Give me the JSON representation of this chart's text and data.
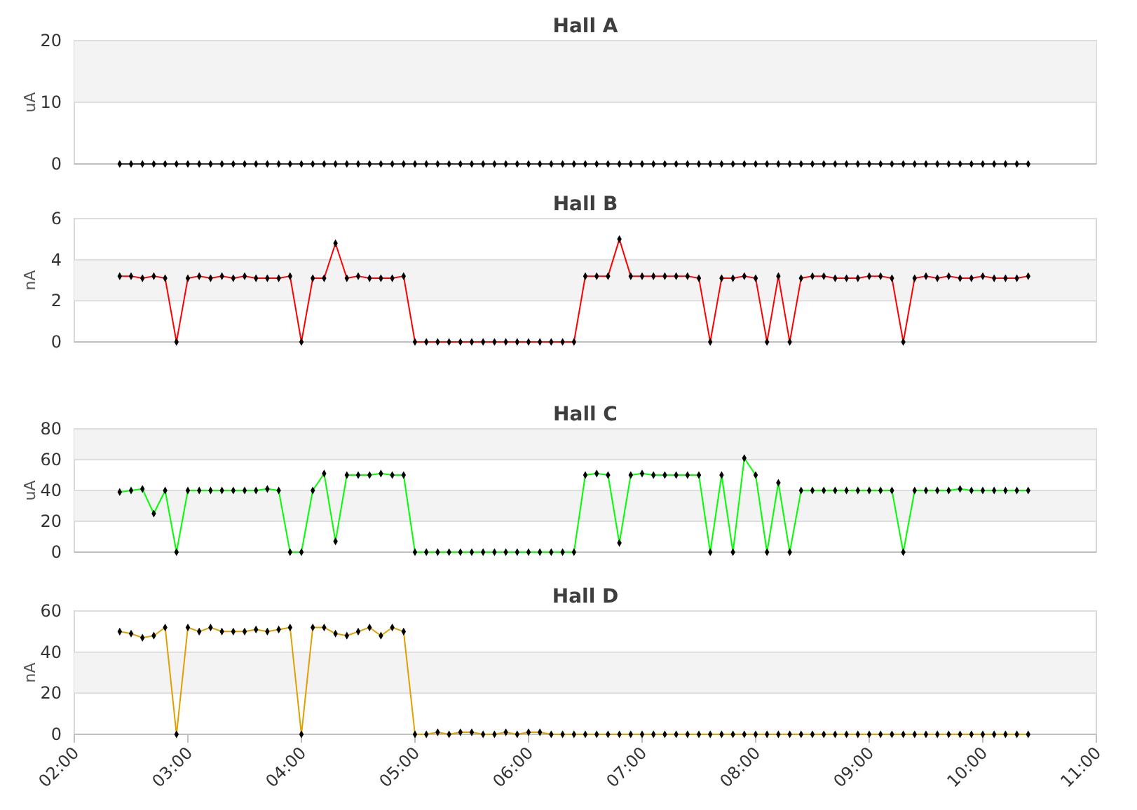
{
  "chart_data": [
    {
      "type": "line",
      "title": "Hall A",
      "ylabel": "uA",
      "color": "#333333",
      "marker": "diamond",
      "grid": "y",
      "tick_labels": "y",
      "xlim": [
        2,
        11
      ],
      "ylim": [
        0,
        20
      ],
      "yticks": [
        0,
        10,
        20
      ],
      "bands": [
        {
          "axis": "y",
          "from": 10,
          "to": 20,
          "color": "#f3f3f3"
        }
      ],
      "x": [
        2.4,
        2.5,
        2.6,
        2.7,
        2.8,
        2.9,
        3.0,
        3.1,
        3.2,
        3.3,
        3.4,
        3.5,
        3.6,
        3.7,
        3.8,
        3.9,
        4.0,
        4.1,
        4.2,
        4.3,
        4.4,
        4.5,
        4.6,
        4.7,
        4.8,
        4.9,
        5.0,
        5.1,
        5.2,
        5.3,
        5.4,
        5.5,
        5.6,
        5.7,
        5.8,
        5.9,
        6.0,
        6.1,
        6.2,
        6.3,
        6.4,
        6.5,
        6.6,
        6.7,
        6.8,
        6.9,
        7.0,
        7.1,
        7.2,
        7.3,
        7.4,
        7.5,
        7.6,
        7.7,
        7.8,
        7.9,
        8.0,
        8.1,
        8.2,
        8.3,
        8.4,
        8.5,
        8.6,
        8.7,
        8.8,
        8.9,
        9.0,
        9.1,
        9.2,
        9.3,
        9.4,
        9.5,
        9.6,
        9.7,
        9.8,
        9.9,
        10.0,
        10.1,
        10.2,
        10.3,
        10.4
      ],
      "values": [
        0,
        0,
        0,
        0,
        0,
        0,
        0,
        0,
        0,
        0,
        0,
        0,
        0,
        0,
        0,
        0,
        0,
        0,
        0,
        0,
        0,
        0,
        0,
        0,
        0,
        0,
        0,
        0,
        0,
        0,
        0,
        0,
        0,
        0,
        0,
        0,
        0,
        0,
        0,
        0,
        0,
        0,
        0,
        0,
        0,
        0,
        0,
        0,
        0,
        0,
        0,
        0,
        0,
        0,
        0,
        0,
        0,
        0,
        0,
        0,
        0,
        0,
        0,
        0,
        0,
        0,
        0,
        0,
        0,
        0,
        0,
        0,
        0,
        0,
        0,
        0,
        0,
        0,
        0,
        0,
        0
      ]
    },
    {
      "type": "line",
      "title": "Hall B",
      "ylabel": "nA",
      "color": "#ff0000",
      "marker": "diamond",
      "grid": "y",
      "tick_labels": "y",
      "xlim": [
        2,
        11
      ],
      "ylim": [
        0,
        6
      ],
      "yticks": [
        0,
        2,
        4,
        6
      ],
      "bands": [
        {
          "axis": "y",
          "from": 2,
          "to": 4,
          "color": "#f3f3f3"
        }
      ],
      "x": [
        2.4,
        2.5,
        2.6,
        2.7,
        2.8,
        2.9,
        3.0,
        3.1,
        3.2,
        3.3,
        3.4,
        3.5,
        3.6,
        3.7,
        3.8,
        3.9,
        4.0,
        4.1,
        4.2,
        4.3,
        4.4,
        4.5,
        4.6,
        4.7,
        4.8,
        4.9,
        5.0,
        5.1,
        5.2,
        5.3,
        5.4,
        5.5,
        5.6,
        5.7,
        5.8,
        5.9,
        6.0,
        6.1,
        6.2,
        6.3,
        6.4,
        6.5,
        6.6,
        6.7,
        6.8,
        6.9,
        7.0,
        7.1,
        7.2,
        7.3,
        7.4,
        7.5,
        7.6,
        7.7,
        7.8,
        7.9,
        8.0,
        8.1,
        8.2,
        8.3,
        8.4,
        8.5,
        8.6,
        8.7,
        8.8,
        8.9,
        9.0,
        9.1,
        9.2,
        9.3,
        9.4,
        9.5,
        9.6,
        9.7,
        9.8,
        9.9,
        10.0,
        10.1,
        10.2,
        10.3,
        10.4
      ],
      "values": [
        3.2,
        3.2,
        3.1,
        3.2,
        3.1,
        0,
        3.1,
        3.2,
        3.1,
        3.2,
        3.1,
        3.2,
        3.1,
        3.1,
        3.1,
        3.2,
        0,
        3.1,
        3.1,
        4.8,
        3.1,
        3.2,
        3.1,
        3.1,
        3.1,
        3.2,
        0,
        0,
        0,
        0,
        0,
        0,
        0,
        0,
        0,
        0,
        0,
        0,
        0,
        0,
        0,
        3.2,
        3.2,
        3.2,
        5.0,
        3.2,
        3.2,
        3.2,
        3.2,
        3.2,
        3.2,
        3.1,
        0,
        3.1,
        3.1,
        3.2,
        3.1,
        0,
        3.2,
        0,
        3.1,
        3.2,
        3.2,
        3.1,
        3.1,
        3.1,
        3.2,
        3.2,
        3.1,
        0,
        3.1,
        3.2,
        3.1,
        3.2,
        3.1,
        3.1,
        3.2,
        3.1,
        3.1,
        3.1,
        3.2
      ]
    },
    {
      "type": "line",
      "title": "Hall C",
      "ylabel": "uA",
      "color": "#00ff00",
      "marker": "diamond",
      "grid": "y",
      "tick_labels": "y",
      "xlim": [
        2,
        11
      ],
      "ylim": [
        0,
        80
      ],
      "yticks": [
        0,
        20,
        40,
        60,
        80
      ],
      "bands": [
        {
          "axis": "y",
          "from": 20,
          "to": 40,
          "color": "#f3f3f3"
        },
        {
          "axis": "y",
          "from": 60,
          "to": 80,
          "color": "#f3f3f3"
        }
      ],
      "x": [
        2.4,
        2.5,
        2.6,
        2.7,
        2.8,
        2.9,
        3.0,
        3.1,
        3.2,
        3.3,
        3.4,
        3.5,
        3.6,
        3.7,
        3.8,
        3.9,
        4.0,
        4.1,
        4.2,
        4.3,
        4.4,
        4.5,
        4.6,
        4.7,
        4.8,
        4.9,
        5.0,
        5.1,
        5.2,
        5.3,
        5.4,
        5.5,
        5.6,
        5.7,
        5.8,
        5.9,
        6.0,
        6.1,
        6.2,
        6.3,
        6.4,
        6.5,
        6.6,
        6.7,
        6.8,
        6.9,
        7.0,
        7.1,
        7.2,
        7.3,
        7.4,
        7.5,
        7.6,
        7.7,
        7.8,
        7.9,
        8.0,
        8.1,
        8.2,
        8.3,
        8.4,
        8.5,
        8.6,
        8.7,
        8.8,
        8.9,
        9.0,
        9.1,
        9.2,
        9.3,
        9.4,
        9.5,
        9.6,
        9.7,
        9.8,
        9.9,
        10.0,
        10.1,
        10.2,
        10.3,
        10.4
      ],
      "values": [
        39,
        40,
        41,
        25,
        40,
        0,
        40,
        40,
        40,
        40,
        40,
        40,
        40,
        41,
        40,
        0,
        0,
        40,
        51,
        7,
        50,
        50,
        50,
        51,
        50,
        50,
        0,
        0,
        0,
        0,
        0,
        0,
        0,
        0,
        0,
        0,
        0,
        0,
        0,
        0,
        0,
        50,
        51,
        50,
        6,
        50,
        51,
        50,
        50,
        50,
        50,
        50,
        0,
        50,
        0,
        61,
        50,
        0,
        45,
        0,
        40,
        40,
        40,
        40,
        40,
        40,
        40,
        40,
        40,
        0,
        40,
        40,
        40,
        40,
        41,
        40,
        40,
        40,
        40,
        40,
        40
      ]
    },
    {
      "type": "line",
      "title": "Hall D",
      "ylabel": "nA",
      "color": "#e0a000",
      "marker": "diamond",
      "grid": "y",
      "xlim": [
        2,
        11
      ],
      "xticks": [
        {
          "value": 2,
          "label": "02:00"
        },
        {
          "value": 3,
          "label": "03:00"
        },
        {
          "value": 4,
          "label": "04:00"
        },
        {
          "value": 5,
          "label": "05:00"
        },
        {
          "value": 6,
          "label": "06:00"
        },
        {
          "value": 7,
          "label": "07:00"
        },
        {
          "value": 8,
          "label": "08:00"
        },
        {
          "value": 9,
          "label": "09:00"
        },
        {
          "value": 10,
          "label": "10:00"
        },
        {
          "value": 11,
          "label": "11:00"
        }
      ],
      "ylim": [
        0,
        60
      ],
      "yticks": [
        0,
        20,
        40,
        60
      ],
      "bands": [
        {
          "axis": "y",
          "from": 20,
          "to": 40,
          "color": "#f3f3f3"
        }
      ],
      "x": [
        2.4,
        2.5,
        2.6,
        2.7,
        2.8,
        2.9,
        3.0,
        3.1,
        3.2,
        3.3,
        3.4,
        3.5,
        3.6,
        3.7,
        3.8,
        3.9,
        4.0,
        4.1,
        4.2,
        4.3,
        4.4,
        4.5,
        4.6,
        4.7,
        4.8,
        4.9,
        5.0,
        5.1,
        5.2,
        5.3,
        5.4,
        5.5,
        5.6,
        5.7,
        5.8,
        5.9,
        6.0,
        6.1,
        6.2,
        6.3,
        6.4,
        6.5,
        6.6,
        6.7,
        6.8,
        6.9,
        7.0,
        7.1,
        7.2,
        7.3,
        7.4,
        7.5,
        7.6,
        7.7,
        7.8,
        7.9,
        8.0,
        8.1,
        8.2,
        8.3,
        8.4,
        8.5,
        8.6,
        8.7,
        8.8,
        8.9,
        9.0,
        9.1,
        9.2,
        9.3,
        9.4,
        9.5,
        9.6,
        9.7,
        9.8,
        9.9,
        10.0,
        10.1,
        10.2,
        10.3,
        10.4
      ],
      "values": [
        50,
        49,
        47,
        48,
        52,
        0,
        52,
        50,
        52,
        50,
        50,
        50,
        51,
        50,
        51,
        52,
        0,
        52,
        52,
        49,
        48,
        50,
        52,
        48,
        52,
        50,
        0,
        0,
        1,
        0,
        1,
        1,
        0,
        0,
        1,
        0,
        1,
        1,
        0,
        0,
        0,
        0,
        0,
        0,
        0,
        0,
        0,
        0,
        0,
        0,
        0,
        0,
        0,
        0,
        0,
        0,
        0,
        0,
        0,
        0,
        0,
        0,
        0,
        0,
        0,
        0,
        0,
        0,
        0,
        0,
        0,
        0,
        0,
        0,
        0,
        0,
        0,
        0,
        0,
        0,
        0
      ]
    }
  ]
}
